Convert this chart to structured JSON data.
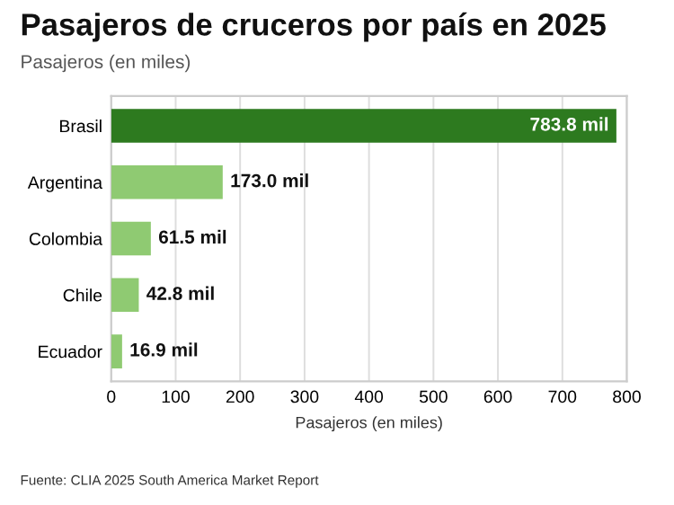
{
  "chart_data": {
    "type": "bar",
    "orientation": "horizontal",
    "title": "Pasajeros de cruceros por país en 2025",
    "subtitle": "Pasajeros (en miles)",
    "xlabel": "Pasajeros (en miles)",
    "categories": [
      "Brasil",
      "Argentina",
      "Colombia",
      "Chile",
      "Ecuador"
    ],
    "values": [
      783.8,
      173.0,
      61.5,
      42.8,
      16.9
    ],
    "colors": [
      "#2d7a1f",
      "#8fca72",
      "#8fca72",
      "#8fca72",
      "#8fca72"
    ],
    "value_labels": [
      "783.8 mil",
      "173.0 mil",
      "61.5 mil",
      "42.8 mil",
      "16.9 mil"
    ],
    "xlim": [
      0,
      800
    ],
    "xticks": [
      0,
      100,
      200,
      300,
      400,
      500,
      600,
      700,
      800
    ],
    "grid": "x",
    "annotations": [
      "Fuente: CLIA 2025 South America Market Report"
    ]
  }
}
